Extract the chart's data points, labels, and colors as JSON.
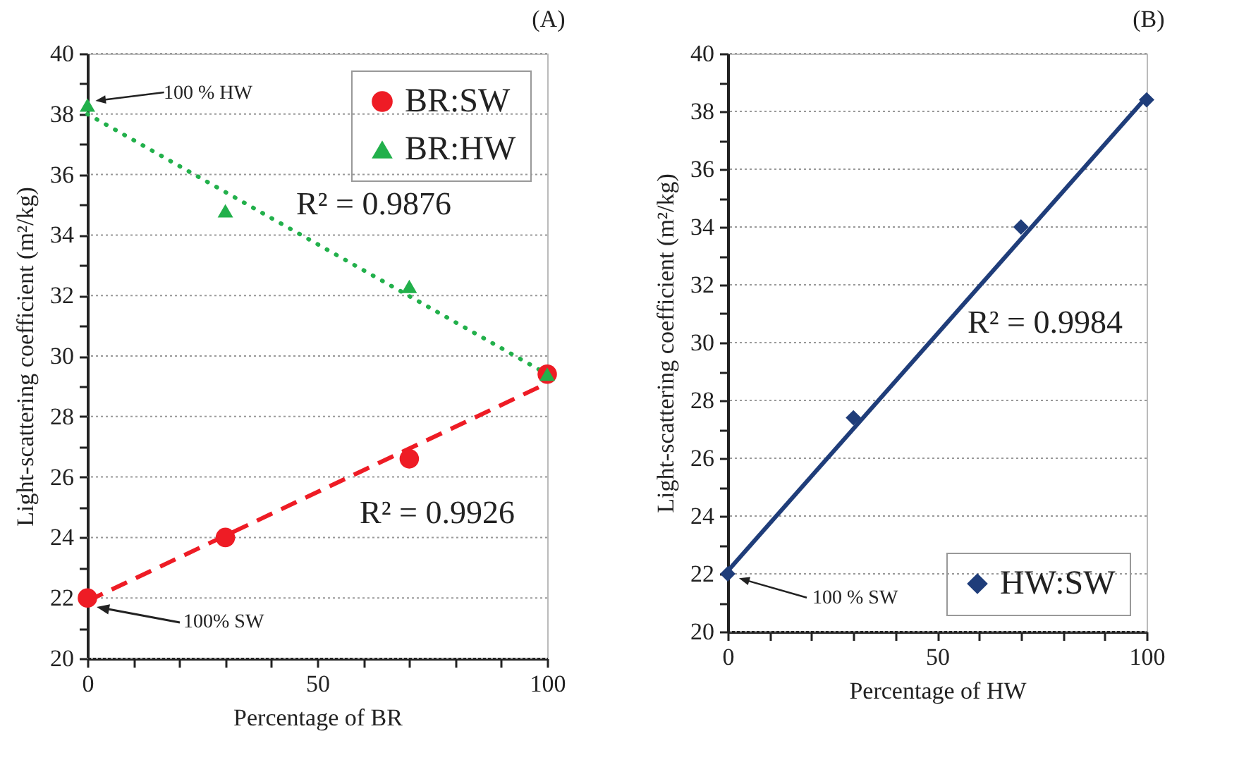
{
  "chart_data": [
    {
      "type": "scatter",
      "title": "(A)",
      "xlabel": "Percentage of BR",
      "ylabel": "Light-scattering coefficient (m²/kg)",
      "xlim": [
        0,
        100
      ],
      "ylim": [
        20,
        40
      ],
      "xticks": [
        0,
        {
          "value": 10,
          "label": null
        },
        {
          "value": 20,
          "label": null
        },
        {
          "value": 30,
          "label": null
        },
        {
          "value": 40,
          "label": null
        },
        50,
        {
          "value": 60,
          "label": null
        },
        {
          "value": 70,
          "label": null
        },
        {
          "value": 80,
          "label": null
        },
        {
          "value": 90,
          "label": null
        },
        100
      ],
      "yticks": [
        20,
        {
          "value": 21,
          "label": null
        },
        22,
        {
          "value": 23,
          "label": null
        },
        24,
        {
          "value": 25,
          "label": null
        },
        26,
        {
          "value": 27,
          "label": null
        },
        28,
        {
          "value": 29,
          "label": null
        },
        30,
        {
          "value": 31,
          "label": null
        },
        32,
        {
          "value": 33,
          "label": null
        },
        34,
        {
          "value": 35,
          "label": null
        },
        36,
        {
          "value": 37,
          "label": null
        },
        38,
        {
          "value": 39,
          "label": null
        },
        40
      ],
      "grid": "y",
      "legend": "top right",
      "series": [
        {
          "name": "BR:SW",
          "color": "#ee1c25",
          "marker": "circle",
          "x": [
            0,
            30,
            70,
            100
          ],
          "values": [
            22.0,
            24.0,
            26.6,
            29.4
          ]
        },
        {
          "name": "BR:HW",
          "color": "#22b04b",
          "marker": "triangle",
          "x": [
            0,
            30,
            70,
            100
          ],
          "values": [
            38.3,
            34.8,
            32.3,
            29.4
          ]
        },
        {
          "type": "line",
          "color": "#ee1c25",
          "line_style": "dashed",
          "x": [
            0,
            100
          ],
          "values": [
            21.9,
            29.1
          ]
        },
        {
          "type": "line",
          "color": "#22b04b",
          "line_style": "dotted",
          "x": [
            0,
            100
          ],
          "values": [
            38.0,
            29.4
          ]
        }
      ],
      "annotations": [
        "R² = 0.9876",
        "R² = 0.9926",
        "100 % HW",
        "100% SW"
      ]
    },
    {
      "type": "scatter",
      "title": "(B)",
      "xlabel": "Percentage of HW",
      "ylabel": "Light-scattering coefficient (m²/kg)",
      "xlim": [
        0,
        100
      ],
      "ylim": [
        20,
        40
      ],
      "xticks": [
        0,
        {
          "value": 10,
          "label": null
        },
        {
          "value": 20,
          "label": null
        },
        {
          "value": 30,
          "label": null
        },
        {
          "value": 40,
          "label": null
        },
        50,
        {
          "value": 60,
          "label": null
        },
        {
          "value": 70,
          "label": null
        },
        {
          "value": 80,
          "label": null
        },
        {
          "value": 90,
          "label": null
        },
        100
      ],
      "yticks": [
        20,
        {
          "value": 21,
          "label": null
        },
        22,
        {
          "value": 23,
          "label": null
        },
        24,
        {
          "value": 25,
          "label": null
        },
        26,
        {
          "value": 27,
          "label": null
        },
        28,
        {
          "value": 29,
          "label": null
        },
        30,
        {
          "value": 31,
          "label": null
        },
        32,
        {
          "value": 33,
          "label": null
        },
        34,
        {
          "value": 35,
          "label": null
        },
        36,
        {
          "value": 37,
          "label": null
        },
        38,
        {
          "value": 39,
          "label": null
        },
        40
      ],
      "grid": "y",
      "legend": "bottom right",
      "series": [
        {
          "name": "HW:SW",
          "color": "#1f3d7a",
          "marker": "diamond",
          "x": [
            0,
            30,
            70,
            100
          ],
          "values": [
            22.0,
            27.4,
            34.0,
            38.4
          ]
        },
        {
          "type": "line",
          "color": "#1f3d7a",
          "line_style": "solid",
          "x": [
            0,
            100
          ],
          "values": [
            22.1,
            38.5
          ]
        }
      ],
      "annotations": [
        "R² = 0.9984",
        "100 % SW"
      ]
    }
  ]
}
